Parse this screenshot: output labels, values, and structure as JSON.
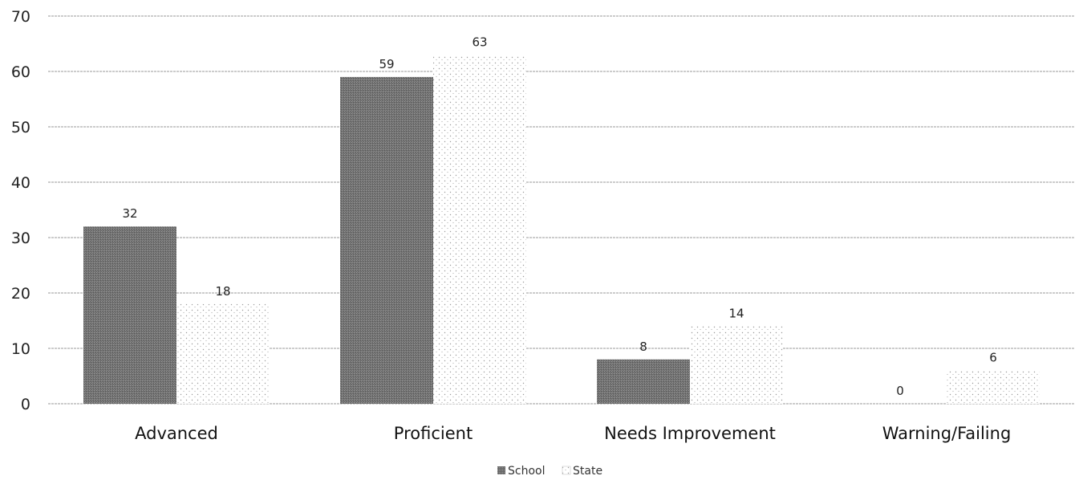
{
  "chart_data": {
    "type": "bar",
    "categories": [
      "Advanced",
      "Proficient",
      "Needs Improvement",
      "Warning/Failing"
    ],
    "series": [
      {
        "name": "School",
        "values": [
          32,
          59,
          8,
          0
        ],
        "color": "#7a7a7a"
      },
      {
        "name": "State",
        "values": [
          18,
          63,
          14,
          6
        ],
        "color": "#c8c8c8"
      }
    ],
    "ylim": [
      0,
      70
    ],
    "yticks": [
      0,
      10,
      20,
      30,
      40,
      50,
      60,
      70
    ],
    "grid": true,
    "legend_position": "bottom-center",
    "title": "",
    "xlabel": "",
    "ylabel": ""
  }
}
